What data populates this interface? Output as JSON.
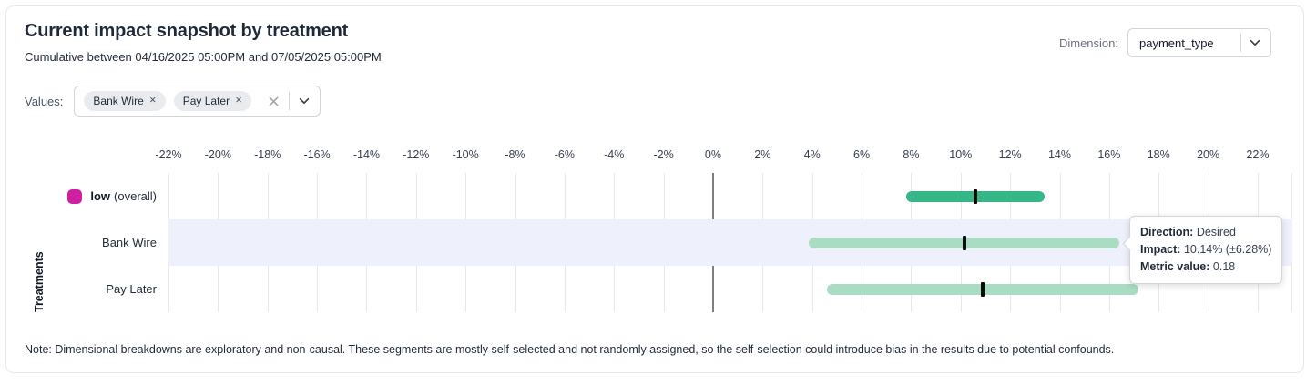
{
  "header": {
    "title": "Current impact snapshot by treatment",
    "subtitle": "Cumulative between 04/16/2025 05:00PM and 07/05/2025 05:00PM",
    "dimension_label": "Dimension:",
    "dimension_value": "payment_type"
  },
  "values_filter": {
    "label": "Values:",
    "chips": [
      "Bank Wire",
      "Pay Later"
    ]
  },
  "icons": {
    "chip_remove": "✕",
    "clear": "✕",
    "chevron_down": "⌄"
  },
  "chart_data": {
    "type": "range_bar",
    "title": "Current impact snapshot by treatment",
    "xlabel": "",
    "ylabel": "Treatments",
    "x_unit": "%",
    "xlim": [
      -22,
      23.4
    ],
    "ticks": [
      -22,
      -20,
      -18,
      -16,
      -14,
      -12,
      -10,
      -8,
      -6,
      -4,
      -2,
      0,
      2,
      4,
      6,
      8,
      10,
      12,
      14,
      16,
      18,
      20,
      22
    ],
    "tick_labels": [
      "-22%",
      "-20%",
      "-18%",
      "-16%",
      "-14%",
      "-12%",
      "-10%",
      "-8%",
      "-6%",
      "-4%",
      "-2%",
      "0%",
      "2%",
      "4%",
      "6%",
      "8%",
      "10%",
      "12%",
      "14%",
      "16%",
      "18%",
      "20%",
      "22%"
    ],
    "grid": "vertical",
    "rows": [
      {
        "label": "low",
        "suffix": "(overall)",
        "bold": true,
        "legend_color": "#ce20a4",
        "bar_color": "#35b787",
        "impact": 10.6,
        "ci_low": 7.8,
        "ci_high": 13.4,
        "highlighted": false
      },
      {
        "label": "Bank Wire",
        "bold": false,
        "bar_color": "#a9dcc2",
        "impact": 10.14,
        "ci_low": 3.86,
        "ci_high": 16.42,
        "highlighted": true,
        "direction": "Desired",
        "metric_value": 0.18
      },
      {
        "label": "Pay Later",
        "bold": false,
        "bar_color": "#a9dcc2",
        "impact": 10.9,
        "ci_low": 4.6,
        "ci_high": 17.2,
        "highlighted": false
      }
    ],
    "tooltip": {
      "direction_label": "Direction:",
      "direction_value": "Desired",
      "impact_label": "Impact:",
      "impact_value": "10.14% (±6.28%)",
      "metric_label": "Metric value:",
      "metric_value": "0.18"
    }
  },
  "note": "Note: Dimensional breakdowns are exploratory and non-causal. These segments are mostly self-selected and not randomly assigned, so the self-selection could introduce bias in the results due to potential confounds.",
  "colors": {
    "accent_magenta": "#ce20a4",
    "bar_dark_green": "#35b787",
    "bar_light_green": "#a9dcc2",
    "highlight_band": "#eef0fc",
    "zero_line": "#7e7e7e",
    "gridline": "#e8e8e8"
  }
}
